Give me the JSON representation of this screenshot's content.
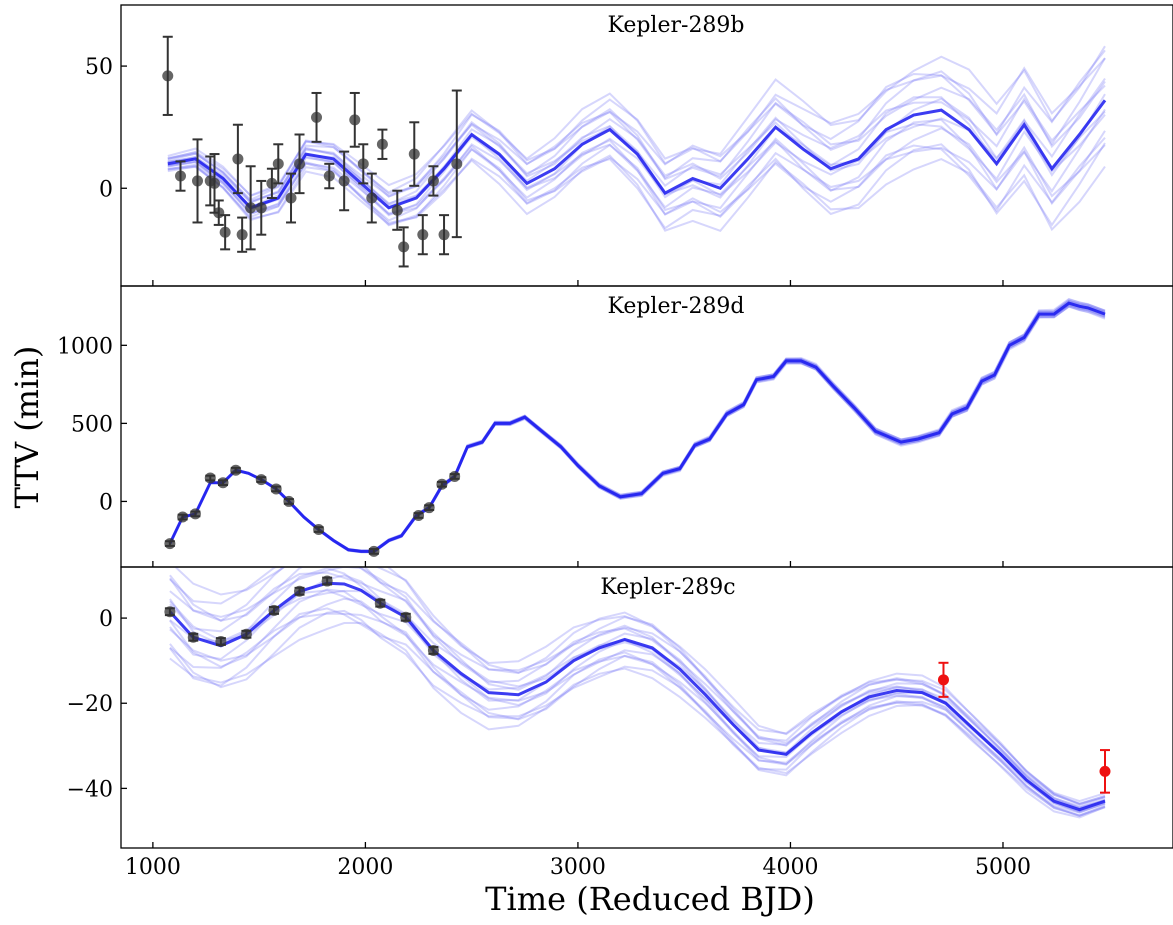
{
  "chart_data": {
    "type": "scatter",
    "xlabel": "Time (Reduced BJD)",
    "ylabel": "TTV (min)",
    "xlim": [
      850,
      5800
    ],
    "xticks": [
      1000,
      2000,
      3000,
      4000,
      5000
    ],
    "grid": false,
    "panels": [
      {
        "title": "Kepler-289b",
        "ylim": [
          -40,
          75
        ],
        "yticks": [
          0,
          50
        ],
        "ytick_labels": [
          "0",
          "50"
        ],
        "observations": {
          "x": [
            1070,
            1130,
            1210,
            1270,
            1290,
            1310,
            1340,
            1400,
            1420,
            1460,
            1510,
            1560,
            1590,
            1650,
            1690,
            1770,
            1830,
            1900,
            1950,
            1990,
            2030,
            2080,
            2150,
            2180,
            2230,
            2270,
            2320,
            2370,
            2430
          ],
          "y": [
            46,
            5,
            3,
            3,
            2,
            -10,
            -18,
            12,
            -19,
            -8,
            -8,
            2,
            10,
            -4,
            10,
            29,
            5,
            3,
            28,
            10,
            -4,
            18,
            -9,
            -24,
            14,
            -19,
            3,
            -19,
            10
          ],
          "err": [
            16,
            6,
            17,
            10,
            12,
            5,
            7,
            14,
            7,
            17,
            11,
            6,
            8,
            10,
            12,
            10,
            5,
            12,
            11,
            8,
            10,
            6,
            8,
            8,
            13,
            8,
            6,
            8,
            30
          ]
        },
        "model": {
          "x": [
            1070,
            1200,
            1330,
            1460,
            1590,
            1720,
            1850,
            1980,
            2110,
            2240,
            2370,
            2500,
            2630,
            2760,
            2890,
            3020,
            3150,
            3280,
            3410,
            3540,
            3670,
            3800,
            3930,
            4060,
            4190,
            4320,
            4450,
            4580,
            4710,
            4840,
            4970,
            5100,
            5230,
            5360,
            5480
          ],
          "y": [
            10,
            12,
            4,
            -8,
            -4,
            14,
            12,
            2,
            -8,
            -4,
            8,
            22,
            14,
            2,
            8,
            18,
            24,
            14,
            -2,
            4,
            0,
            12,
            25,
            16,
            8,
            12,
            24,
            30,
            32,
            24,
            10,
            26,
            8,
            22,
            36
          ],
          "spread_start": 3,
          "spread_end": 24
        },
        "future_obs": {
          "x": [],
          "y": [],
          "err": []
        }
      },
      {
        "title": "Kepler-289d",
        "ylim": [
          -420,
          1380
        ],
        "yticks": [
          0,
          500,
          1000
        ],
        "ytick_labels": [
          "0",
          "500",
          "1000"
        ],
        "observations": {
          "x": [
            1080,
            1140,
            1200,
            1270,
            1330,
            1390,
            1510,
            1580,
            1640,
            1780,
            2040,
            2250,
            2300,
            2360,
            2420
          ],
          "y": [
            -270,
            -100,
            -80,
            150,
            120,
            200,
            140,
            80,
            0,
            -180,
            -320,
            -90,
            -40,
            110,
            160
          ],
          "err": [
            15,
            15,
            15,
            15,
            15,
            15,
            15,
            15,
            15,
            15,
            15,
            15,
            15,
            15,
            15
          ]
        },
        "model": {
          "x": [
            1080,
            1140,
            1200,
            1270,
            1330,
            1390,
            1450,
            1510,
            1580,
            1640,
            1710,
            1780,
            1850,
            1920,
            1980,
            2040,
            2110,
            2170,
            2240,
            2300,
            2360,
            2420,
            2480,
            2550,
            2610,
            2680,
            2750,
            2830,
            2920,
            3000,
            3100,
            3200,
            3300,
            3400,
            3480,
            3550,
            3620,
            3700,
            3780,
            3840,
            3920,
            3980,
            4050,
            4120,
            4200,
            4300,
            4400,
            4520,
            4600,
            4700,
            4760,
            4830,
            4900,
            4960,
            5030,
            5100,
            5170,
            5240,
            5310,
            5360,
            5400,
            5480
          ],
          "y": [
            -270,
            -100,
            -80,
            120,
            120,
            200,
            180,
            140,
            80,
            0,
            -100,
            -180,
            -250,
            -310,
            -320,
            -320,
            -250,
            -220,
            -90,
            -40,
            100,
            160,
            350,
            380,
            500,
            500,
            540,
            450,
            350,
            230,
            100,
            30,
            50,
            180,
            210,
            360,
            400,
            560,
            620,
            780,
            800,
            900,
            900,
            860,
            740,
            600,
            450,
            380,
            400,
            440,
            560,
            600,
            770,
            810,
            1000,
            1050,
            1200,
            1200,
            1270,
            1250,
            1240,
            1200
          ],
          "spread_start": 0,
          "spread_end": 25
        },
        "future_obs": {
          "x": [],
          "y": [],
          "err": []
        }
      },
      {
        "title": "Kepler-289c",
        "ylim": [
          -54,
          12
        ],
        "yticks": [
          0,
          -20,
          -40
        ],
        "ytick_labels": [
          "0",
          "−20",
          "−40"
        ],
        "observations": {
          "x": [
            1080,
            1190,
            1320,
            1440,
            1570,
            1690,
            1820,
            2070,
            2190,
            2320
          ],
          "y": [
            1.5,
            -4.5,
            -5.5,
            -3.8,
            1.8,
            6.3,
            8.7,
            3.5,
            0.2,
            -7.6
          ],
          "err": [
            0.8,
            0.8,
            0.8,
            0.8,
            0.8,
            0.8,
            0.8,
            0.8,
            0.8,
            0.8
          ]
        },
        "model": {
          "x": [
            1080,
            1190,
            1320,
            1440,
            1570,
            1690,
            1820,
            1900,
            1980,
            2070,
            2190,
            2320,
            2450,
            2580,
            2720,
            2850,
            2980,
            3100,
            3220,
            3350,
            3480,
            3600,
            3730,
            3850,
            3980,
            4100,
            4240,
            4370,
            4500,
            4620,
            4730,
            4860,
            4990,
            5110,
            5240,
            5360,
            5480
          ],
          "y": [
            1.5,
            -4.5,
            -6.5,
            -3.8,
            1.8,
            6.3,
            8.2,
            8.0,
            6.5,
            3.5,
            0.2,
            -7.6,
            -13,
            -17.5,
            -18,
            -15,
            -10,
            -7,
            -5,
            -7,
            -12,
            -18,
            -25,
            -31,
            -32,
            -27,
            -22,
            -18.5,
            -17,
            -17.5,
            -20,
            -26,
            -32,
            -38,
            -43,
            -45,
            -43
          ],
          "spread_start": 11,
          "spread_end": 1.6
        },
        "future_obs": {
          "x": [
            4720,
            5480
          ],
          "y": [
            -14.5,
            -36
          ],
          "err": [
            4,
            5
          ]
        }
      }
    ],
    "colors": {
      "model": "#1a1aee",
      "model_light": "#6a6af5",
      "obs": "#333333",
      "future_obs": "#ee1111",
      "axis": "#000000"
    }
  }
}
